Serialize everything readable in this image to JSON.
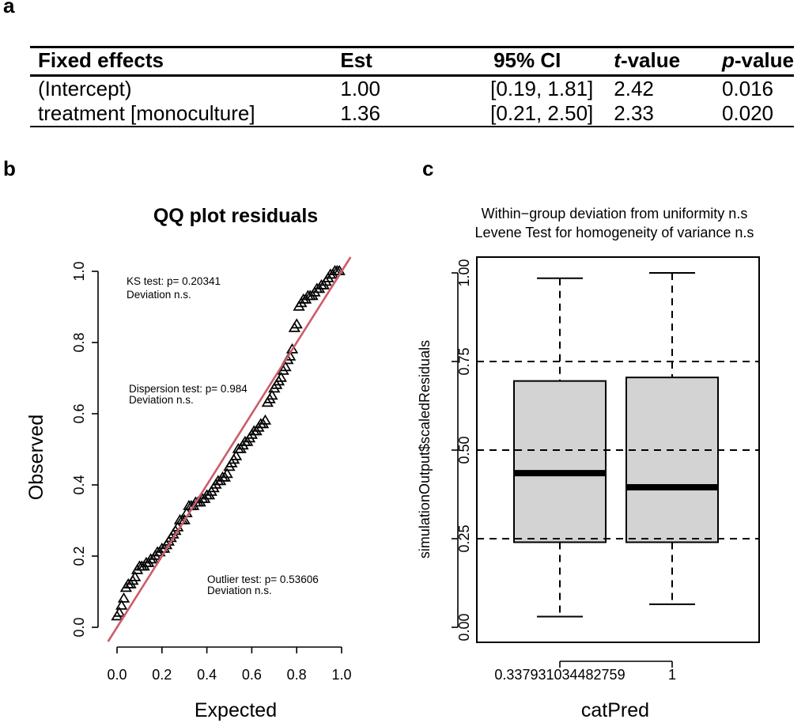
{
  "panel_labels": {
    "a": "a",
    "b": "b",
    "c": "c"
  },
  "table": {
    "headers": {
      "fixed_effects": "Fixed effects",
      "est": "Est",
      "ci": "95% CI",
      "t_italic": "t",
      "t_rest": "-value",
      "p_italic": "p",
      "p_rest": "-value"
    },
    "rows": [
      {
        "name": "(Intercept)",
        "est": "1.00",
        "ci": "[0.19, 1.81]",
        "t": "2.42",
        "p": "0.016"
      },
      {
        "name": "treatment [monoculture]",
        "est": "1.36",
        "ci": "[0.21, 2.50]",
        "t": "2.33",
        "p": "0.020"
      }
    ]
  },
  "chart_data": [
    {
      "type": "scatter",
      "title": "QQ plot residuals",
      "xlabel": "Expected",
      "ylabel": "Observed",
      "xlim": [
        0,
        1
      ],
      "ylim": [
        0,
        1
      ],
      "xticks": [
        "0.0",
        "0.2",
        "0.4",
        "0.6",
        "0.8",
        "1.0"
      ],
      "yticks": [
        "0.0",
        "0.2",
        "0.4",
        "0.6",
        "0.8",
        "1.0"
      ],
      "reference_line_color": "#cd5c6a",
      "marker_color": "#000000",
      "annotations": [
        {
          "line1": "KS test: p= 0.20341",
          "line2": "Deviation n.s."
        },
        {
          "line1": "Dispersion test: p= 0.984",
          "line2": "Deviation  n.s."
        },
        {
          "line1": "Outlier test: p= 0.53606",
          "line2": "Deviation  n.s."
        }
      ],
      "points": [
        [
          0.0,
          0.03
        ],
        [
          0.01,
          0.04
        ],
        [
          0.02,
          0.06
        ],
        [
          0.03,
          0.08
        ],
        [
          0.04,
          0.11
        ],
        [
          0.05,
          0.12
        ],
        [
          0.06,
          0.12
        ],
        [
          0.07,
          0.13
        ],
        [
          0.08,
          0.14
        ],
        [
          0.09,
          0.16
        ],
        [
          0.1,
          0.17
        ],
        [
          0.11,
          0.17
        ],
        [
          0.12,
          0.17
        ],
        [
          0.13,
          0.18
        ],
        [
          0.14,
          0.18
        ],
        [
          0.15,
          0.19
        ],
        [
          0.16,
          0.19
        ],
        [
          0.17,
          0.2
        ],
        [
          0.18,
          0.21
        ],
        [
          0.19,
          0.21
        ],
        [
          0.2,
          0.22
        ],
        [
          0.21,
          0.22
        ],
        [
          0.22,
          0.23
        ],
        [
          0.23,
          0.24
        ],
        [
          0.24,
          0.25
        ],
        [
          0.25,
          0.26
        ],
        [
          0.26,
          0.27
        ],
        [
          0.27,
          0.28
        ],
        [
          0.28,
          0.3
        ],
        [
          0.29,
          0.3
        ],
        [
          0.3,
          0.3
        ],
        [
          0.31,
          0.32
        ],
        [
          0.32,
          0.34
        ],
        [
          0.33,
          0.34
        ],
        [
          0.34,
          0.34
        ],
        [
          0.35,
          0.35
        ],
        [
          0.36,
          0.35
        ],
        [
          0.37,
          0.35
        ],
        [
          0.38,
          0.36
        ],
        [
          0.39,
          0.36
        ],
        [
          0.4,
          0.37
        ],
        [
          0.41,
          0.37
        ],
        [
          0.42,
          0.38
        ],
        [
          0.43,
          0.39
        ],
        [
          0.44,
          0.4
        ],
        [
          0.45,
          0.41
        ],
        [
          0.46,
          0.41
        ],
        [
          0.47,
          0.42
        ],
        [
          0.48,
          0.42
        ],
        [
          0.49,
          0.43
        ],
        [
          0.5,
          0.45
        ],
        [
          0.51,
          0.46
        ],
        [
          0.52,
          0.47
        ],
        [
          0.53,
          0.48
        ],
        [
          0.54,
          0.5
        ],
        [
          0.55,
          0.5
        ],
        [
          0.56,
          0.51
        ],
        [
          0.57,
          0.52
        ],
        [
          0.58,
          0.52
        ],
        [
          0.59,
          0.53
        ],
        [
          0.6,
          0.54
        ],
        [
          0.61,
          0.55
        ],
        [
          0.62,
          0.55
        ],
        [
          0.63,
          0.56
        ],
        [
          0.64,
          0.57
        ],
        [
          0.65,
          0.57
        ],
        [
          0.66,
          0.58
        ],
        [
          0.67,
          0.63
        ],
        [
          0.68,
          0.64
        ],
        [
          0.69,
          0.65
        ],
        [
          0.7,
          0.67
        ],
        [
          0.71,
          0.68
        ],
        [
          0.72,
          0.69
        ],
        [
          0.73,
          0.7
        ],
        [
          0.74,
          0.72
        ],
        [
          0.75,
          0.73
        ],
        [
          0.76,
          0.75
        ],
        [
          0.77,
          0.76
        ],
        [
          0.78,
          0.78
        ],
        [
          0.79,
          0.84
        ],
        [
          0.8,
          0.85
        ],
        [
          0.81,
          0.9
        ],
        [
          0.82,
          0.91
        ],
        [
          0.83,
          0.92
        ],
        [
          0.84,
          0.92
        ],
        [
          0.85,
          0.93
        ],
        [
          0.86,
          0.93
        ],
        [
          0.87,
          0.93
        ],
        [
          0.88,
          0.94
        ],
        [
          0.89,
          0.95
        ],
        [
          0.9,
          0.95
        ],
        [
          0.91,
          0.96
        ],
        [
          0.92,
          0.96
        ],
        [
          0.93,
          0.97
        ],
        [
          0.94,
          0.98
        ],
        [
          0.95,
          0.99
        ],
        [
          0.96,
          0.99
        ],
        [
          0.97,
          1.0
        ],
        [
          0.98,
          1.0
        ],
        [
          0.99,
          1.0
        ]
      ]
    },
    {
      "type": "box",
      "title": "Within−group deviation from uniformity n.s",
      "subtitle": "Levene Test for homogeneity of variance n.s",
      "xlabel": "catPred",
      "ylabel": "simulationOutput$scaledResiduals",
      "ylim": [
        0,
        1
      ],
      "yticks": [
        "0.00",
        "0.25",
        "0.50",
        "0.75",
        "1.00"
      ],
      "reference_lines": [
        0.25,
        0.5,
        0.75
      ],
      "box_fill": "#d3d3d3",
      "groups": [
        {
          "label": "0.337931034482759",
          "min": 0.03,
          "q1": 0.24,
          "median": 0.435,
          "q3": 0.695,
          "max": 0.985
        },
        {
          "label": "1",
          "min": 0.065,
          "q1": 0.24,
          "median": 0.395,
          "q3": 0.705,
          "max": 1.0
        }
      ]
    }
  ]
}
